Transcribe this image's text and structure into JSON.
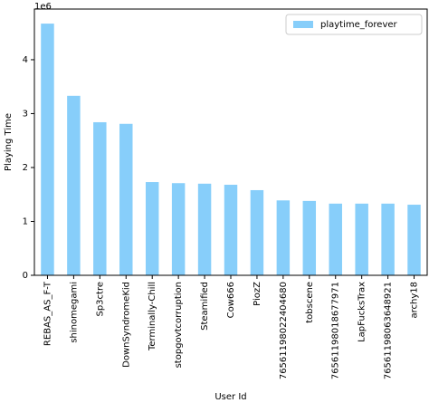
{
  "chart_data": {
    "type": "bar",
    "x_label": "User Id",
    "y_label": "Playing Time",
    "y_offset_label": "1e6",
    "categories": [
      "REBAS_AS_F-T",
      "shinomegami",
      "Sp3ctre",
      "DownSyndromeKid",
      "Terminally-Chill",
      "stopgovtcorruption",
      "Steamified",
      "Cow666",
      "PiozZ",
      "76561198022404680",
      "tobscene",
      "76561198018677971",
      "LapFucksTrax",
      "76561198063648921",
      "archy18"
    ],
    "series": [
      {
        "name": "playtime_forever",
        "color": "#87cefa",
        "values": [
          4.67,
          3.33,
          2.84,
          2.81,
          1.73,
          1.71,
          1.7,
          1.68,
          1.58,
          1.39,
          1.38,
          1.33,
          1.33,
          1.33,
          1.31
        ]
      }
    ],
    "ylim": [
      0,
      4.94
    ],
    "yticks": [
      0,
      1,
      2,
      3,
      4
    ],
    "grid": false,
    "legend": "upper right"
  }
}
